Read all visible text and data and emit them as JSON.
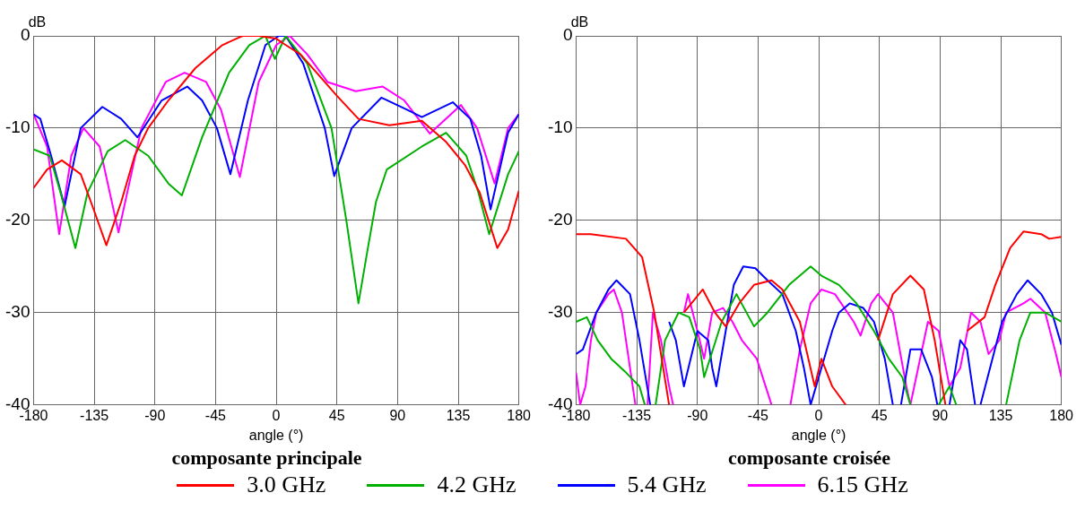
{
  "chart_data": [
    {
      "type": "line",
      "title": "composante principale",
      "xlabel": "angle (°)",
      "ylabel": "dB",
      "xlim": [
        -180,
        180
      ],
      "ylim": [
        -40,
        0
      ],
      "xticks": [
        -180,
        -135,
        -90,
        -45,
        0,
        45,
        90,
        135,
        180
      ],
      "yticks": [
        0,
        -10,
        -20,
        -30,
        -40
      ],
      "grid": true,
      "legend": "bottom",
      "series": [
        {
          "name": "3.0 GHz",
          "color": "#ff0000",
          "x": [
            -180,
            -170,
            -159,
            -145,
            -135,
            -126,
            -115,
            -105,
            -95,
            -80,
            -60,
            -40,
            -25,
            -13,
            0,
            5,
            18,
            30,
            45,
            61,
            84,
            108,
            126,
            140,
            151,
            164,
            172,
            180
          ],
          "values": [
            -16.5,
            -14.5,
            -13.5,
            -15,
            -19,
            -22.7,
            -18,
            -13,
            -10,
            -7,
            -3.5,
            -1,
            0,
            0,
            -0.3,
            -0.8,
            -2,
            -4,
            -6.5,
            -9,
            -9.7,
            -9.2,
            -11.5,
            -14,
            -17,
            -23,
            -21,
            -16.8
          ]
        },
        {
          "name": "4.2 GHz",
          "color": "#00b000",
          "x": [
            -180,
            -168,
            -160,
            -149,
            -140,
            -125,
            -112,
            -95,
            -80,
            -70,
            -55,
            -35,
            -20,
            -8,
            -1,
            7,
            23,
            41,
            52,
            61,
            68,
            74,
            82,
            108,
            126,
            141,
            150,
            158,
            172,
            180
          ],
          "values": [
            -12.3,
            -13,
            -17,
            -23,
            -17,
            -12.5,
            -11.3,
            -13,
            -16,
            -17.3,
            -11,
            -4,
            -1,
            0,
            -2.5,
            0,
            -3,
            -10,
            -20,
            -29,
            -23,
            -18,
            -14.5,
            -12,
            -10.5,
            -13,
            -17,
            -21.5,
            -15,
            -12.5
          ]
        },
        {
          "name": "5.4 GHz",
          "color": "#0000ff",
          "x": [
            -180,
            -175,
            -167,
            -157,
            -145,
            -129,
            -115,
            -103,
            -85,
            -66,
            -55,
            -44,
            -34,
            -21,
            -8,
            2,
            7,
            20,
            36,
            43,
            56,
            78,
            97,
            108,
            131,
            144,
            152,
            159,
            172,
            180
          ],
          "values": [
            -8.5,
            -9,
            -13,
            -18.5,
            -10,
            -7.7,
            -9,
            -11,
            -7,
            -5.5,
            -7,
            -10,
            -15,
            -7,
            -1,
            0,
            0,
            -3,
            -10,
            -15.2,
            -10,
            -6.7,
            -8,
            -8.8,
            -7.2,
            -9,
            -13,
            -18.8,
            -10.5,
            -8.5
          ]
        },
        {
          "name": "6.15 GHz",
          "color": "#ff00ff",
          "x": [
            -180,
            -170,
            -161,
            -152,
            -143,
            -131,
            -117,
            -100,
            -82,
            -68,
            -52,
            -41,
            -27,
            -13,
            0,
            10,
            23,
            38,
            59,
            79,
            95,
            114,
            137,
            149,
            162,
            172,
            180
          ],
          "values": [
            -8.5,
            -12,
            -21.5,
            -13,
            -10,
            -12,
            -21.3,
            -10,
            -5,
            -4,
            -5,
            -8,
            -15.3,
            -5,
            -1,
            0,
            -2,
            -5,
            -6,
            -5.5,
            -7,
            -10.6,
            -7.5,
            -10,
            -16,
            -10,
            -8.5
          ]
        }
      ]
    },
    {
      "type": "line",
      "title": "composante croisée",
      "xlabel": "angle (°)",
      "ylabel": "dB",
      "xlim": [
        -180,
        180
      ],
      "ylim": [
        -40,
        0
      ],
      "xticks": [
        -180,
        -135,
        -90,
        -45,
        0,
        45,
        90,
        135,
        180
      ],
      "yticks": [
        0,
        -10,
        -20,
        -30,
        -40
      ],
      "grid": true,
      "series": [
        {
          "color": "#ff0000",
          "x": [
            -180,
            -169,
            -143,
            -131,
            -122,
            -111,
            -106,
            -100,
            -86,
            -77,
            -69,
            -59,
            -48,
            -35,
            -27,
            -14,
            -3,
            2,
            10,
            20,
            32,
            44,
            55,
            68,
            78,
            86,
            94,
            102,
            110,
            123,
            131,
            142,
            152,
            165,
            171,
            180
          ],
          "values": [
            -21.5,
            -21.5,
            -22,
            -24,
            -30,
            -40,
            null,
            -30,
            -27.5,
            -30,
            -31.5,
            -29,
            -27,
            -26.5,
            -27.5,
            -31,
            -38,
            -35,
            -38,
            -40,
            null,
            -33,
            -28,
            -26,
            -27.5,
            -33,
            -40,
            null,
            -32,
            -30.5,
            -27,
            -23,
            -21.2,
            -21.5,
            -22,
            -21.8
          ]
        },
        {
          "color": "#00b000",
          "x": [
            -180,
            -172,
            -164,
            -154,
            -143,
            -133,
            -129,
            -125,
            -121,
            -114,
            -104,
            -96,
            -88,
            -85,
            -72,
            -61,
            -48,
            -38,
            -22,
            -6,
            2,
            15,
            28,
            41,
            52,
            62,
            68,
            78,
            89,
            97,
            102,
            120,
            139,
            149,
            157,
            168,
            180
          ],
          "values": [
            -31,
            -30.5,
            -33,
            -35,
            -36.5,
            -38,
            -40,
            null,
            -40,
            -33,
            -30,
            -30.5,
            -34,
            -37,
            -31,
            -28,
            -31.5,
            -30,
            -27,
            -25,
            -26,
            -27,
            -29,
            -32,
            -35,
            -37,
            -40,
            null,
            -40,
            -38,
            -40,
            null,
            -40,
            -33,
            -30,
            -30,
            -31
          ]
        },
        {
          "color": "#0000ff",
          "x": [
            -180,
            -175,
            -165,
            -156,
            -150,
            -140,
            -133,
            -125,
            -121,
            -111,
            -106,
            -100,
            -90,
            -82,
            -79,
            -76,
            -69,
            -63,
            -56,
            -47,
            -38,
            -27,
            -17,
            -11,
            -6,
            2,
            10,
            15,
            23,
            33,
            41,
            49,
            55,
            58,
            61,
            68,
            76,
            84,
            88,
            92,
            97,
            105,
            110,
            116,
            118,
            120,
            136,
            147,
            155,
            165,
            173,
            180
          ],
          "values": [
            -34.5,
            -34,
            -30,
            -27.5,
            -26.5,
            -28,
            -33,
            -40,
            null,
            -31,
            -33,
            -38,
            -32,
            -33,
            -36,
            -38,
            -32,
            -27,
            -25,
            -25.2,
            -26.5,
            -28,
            -32,
            -36,
            -40,
            -36,
            -32,
            -30,
            -29,
            -29.5,
            -31,
            -35,
            -40,
            null,
            -40,
            -34,
            -34,
            -37,
            -40,
            null,
            -40,
            -33,
            -34,
            -40,
            null,
            -40,
            -31,
            -28,
            -26.5,
            -28,
            -30,
            -33.5
          ]
        },
        {
          "color": "#ff00ff",
          "x": [
            -180,
            -177,
            -173,
            -169,
            -165,
            -156,
            -152,
            -146,
            -138,
            -136,
            -132,
            -127,
            -123,
            -117,
            -111,
            -108,
            -105,
            -100,
            -97,
            -90,
            -85,
            -79,
            -71,
            -64,
            -57,
            -46,
            -35,
            -28,
            -21,
            -14,
            -6,
            2,
            12,
            26,
            31,
            39,
            44,
            55,
            65,
            68,
            81,
            89,
            97,
            105,
            113,
            120,
            126,
            134,
            139,
            152,
            157,
            168,
            176,
            180
          ],
          "values": [
            -36.5,
            -40,
            -38,
            -33,
            -30,
            -28,
            -27.5,
            -30,
            -38,
            -40,
            null,
            -40,
            -30,
            -33,
            -38,
            -40,
            null,
            -30,
            -28,
            -32,
            -35,
            -30,
            -29.5,
            -31,
            -33,
            -35,
            -40,
            null,
            -40,
            -34,
            -29,
            -27.5,
            -28,
            -31,
            -32.5,
            -29,
            -28,
            -30,
            -38,
            -40,
            -31,
            -32,
            -38,
            -36,
            -30,
            -31,
            -34.5,
            -33,
            -30,
            -29,
            -28.5,
            -30,
            -34.5,
            -37
          ]
        }
      ]
    }
  ]
}
